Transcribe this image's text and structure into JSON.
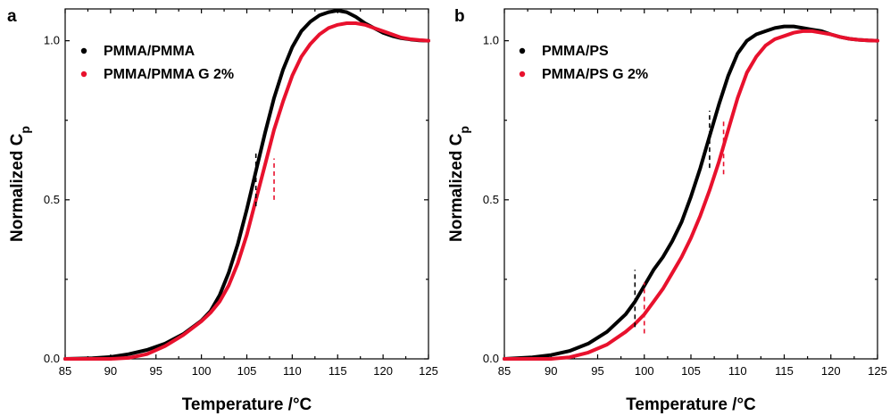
{
  "chart_data": [
    {
      "type": "line",
      "panel_label": "a",
      "xlabel": "Temperature /°C",
      "ylabel_main": "Normalized C",
      "ylabel_sub": "p",
      "xlim": [
        85,
        125
      ],
      "ylim": [
        0,
        1.1
      ],
      "x_ticks": [
        85,
        90,
        95,
        100,
        105,
        110,
        115,
        120,
        125
      ],
      "y_ticks": [
        0.0,
        0.5,
        1.0
      ],
      "y_tick_labels": [
        "0.0",
        "0.5",
        "1.0"
      ],
      "legend_placement": "top-left",
      "series": [
        {
          "name": "PMMA/PMMA",
          "color": "#000000",
          "x": [
            85,
            88,
            90,
            92,
            94,
            96,
            98,
            100,
            101,
            102,
            103,
            104,
            105,
            106,
            107,
            108,
            109,
            110,
            111,
            112,
            113,
            114,
            115,
            116,
            117,
            118,
            119,
            120,
            121,
            122,
            123,
            124,
            125
          ],
          "y": [
            0,
            0.002,
            0.006,
            0.015,
            0.028,
            0.048,
            0.078,
            0.12,
            0.15,
            0.2,
            0.27,
            0.36,
            0.47,
            0.59,
            0.71,
            0.82,
            0.91,
            0.98,
            1.03,
            1.06,
            1.08,
            1.09,
            1.095,
            1.09,
            1.075,
            1.055,
            1.04,
            1.025,
            1.015,
            1.008,
            1.004,
            1.001,
            1.0
          ]
        },
        {
          "name": "PMMA/PMMA G 2%",
          "color": "#e8112d",
          "x": [
            85,
            90,
            92,
            94,
            96,
            98,
            100,
            101,
            102,
            103,
            104,
            105,
            106,
            107,
            108,
            109,
            110,
            111,
            112,
            113,
            114,
            115,
            116,
            117,
            118,
            119,
            120,
            121,
            122,
            123,
            124,
            125
          ],
          "y": [
            0,
            0,
            0.003,
            0.015,
            0.04,
            0.075,
            0.118,
            0.145,
            0.18,
            0.23,
            0.3,
            0.39,
            0.5,
            0.61,
            0.72,
            0.81,
            0.89,
            0.95,
            0.99,
            1.02,
            1.04,
            1.05,
            1.055,
            1.055,
            1.05,
            1.04,
            1.03,
            1.02,
            1.01,
            1.005,
            1.002,
            1.0
          ]
        }
      ],
      "annotations": [
        {
          "type": "dashed-vline",
          "x": 106.0,
          "y_range": [
            0.48,
            0.65
          ],
          "color": "#000000"
        },
        {
          "type": "dashed-vline",
          "x": 108.0,
          "y_range": [
            0.5,
            0.63
          ],
          "color": "#e8112d"
        }
      ]
    },
    {
      "type": "line",
      "panel_label": "b",
      "xlabel": "Temperature /°C",
      "ylabel_main": "Normalized C",
      "ylabel_sub": "p",
      "xlim": [
        85,
        125
      ],
      "ylim": [
        0,
        1.1
      ],
      "x_ticks": [
        85,
        90,
        95,
        100,
        105,
        110,
        115,
        120,
        125
      ],
      "y_ticks": [
        0.0,
        0.5,
        1.0
      ],
      "y_tick_labels": [
        "0.0",
        "0.5",
        "1.0"
      ],
      "legend_placement": "top-left",
      "series": [
        {
          "name": "PMMA/PS",
          "color": "#000000",
          "x": [
            85,
            88,
            90,
            92,
            94,
            96,
            98,
            99,
            100,
            101,
            102,
            103,
            104,
            105,
            106,
            107,
            108,
            109,
            110,
            111,
            112,
            113,
            114,
            115,
            116,
            117,
            118,
            119,
            120,
            121,
            122,
            123,
            124,
            125
          ],
          "y": [
            0,
            0.005,
            0.012,
            0.025,
            0.048,
            0.085,
            0.14,
            0.18,
            0.23,
            0.28,
            0.32,
            0.37,
            0.43,
            0.51,
            0.6,
            0.7,
            0.8,
            0.89,
            0.96,
            1.0,
            1.02,
            1.03,
            1.04,
            1.045,
            1.045,
            1.04,
            1.035,
            1.03,
            1.02,
            1.012,
            1.006,
            1.003,
            1.001,
            1.0
          ]
        },
        {
          "name": "PMMA/PS G 2%",
          "color": "#e8112d",
          "x": [
            85,
            90,
            92,
            94,
            96,
            98,
            99,
            100,
            101,
            102,
            103,
            104,
            105,
            106,
            107,
            108,
            109,
            110,
            111,
            112,
            113,
            114,
            115,
            116,
            117,
            118,
            119,
            120,
            121,
            122,
            123,
            124,
            125
          ],
          "y": [
            0,
            0,
            0.005,
            0.02,
            0.045,
            0.085,
            0.11,
            0.14,
            0.18,
            0.22,
            0.27,
            0.32,
            0.38,
            0.45,
            0.53,
            0.62,
            0.72,
            0.82,
            0.9,
            0.95,
            0.985,
            1.005,
            1.015,
            1.025,
            1.03,
            1.03,
            1.025,
            1.02,
            1.012,
            1.006,
            1.003,
            1.001,
            1.0
          ]
        }
      ],
      "annotations": [
        {
          "type": "dashed-vline",
          "x": 99.0,
          "y_range": [
            0.1,
            0.28
          ],
          "color": "#000000"
        },
        {
          "type": "dashed-vline",
          "x": 100.0,
          "y_range": [
            0.08,
            0.24
          ],
          "color": "#e8112d"
        },
        {
          "type": "dashed-vline",
          "x": 107.0,
          "y_range": [
            0.6,
            0.78
          ],
          "color": "#000000"
        },
        {
          "type": "dashed-vline",
          "x": 108.5,
          "y_range": [
            0.58,
            0.75
          ],
          "color": "#e8112d"
        }
      ]
    }
  ]
}
